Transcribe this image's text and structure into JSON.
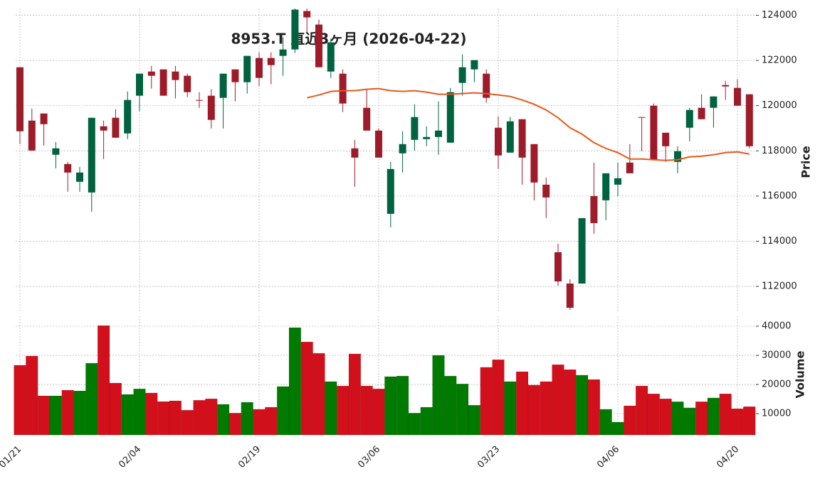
{
  "chart_data": {
    "type": "candlestick",
    "title": "8953.T 直近3ヶ月 (2026-04-22)",
    "categories": [
      "01/21",
      null,
      null,
      null,
      null,
      null,
      null,
      null,
      null,
      null,
      "02/04",
      null,
      null,
      null,
      null,
      null,
      null,
      null,
      null,
      null,
      "02/19",
      null,
      null,
      null,
      null,
      null,
      null,
      null,
      null,
      null,
      "03/06",
      null,
      null,
      null,
      null,
      null,
      null,
      null,
      null,
      null,
      "03/23",
      null,
      null,
      null,
      null,
      null,
      null,
      null,
      null,
      null,
      "04/06",
      null,
      null,
      null,
      null,
      null,
      null,
      null,
      null,
      null,
      "04/20",
      null
    ],
    "open": [
      121700,
      119338,
      119653,
      117826,
      117417,
      116629,
      116157,
      119086,
      119464,
      118771,
      120441,
      121511,
      121606,
      121511,
      121323,
      120252,
      120441,
      120346,
      121606,
      121039,
      122110,
      122110,
      122205,
      122488,
      124189,
      123591,
      121511,
      121417,
      118110,
      119905,
      118897,
      115212,
      117889,
      118487,
      118519,
      118614,
      118362,
      121008,
      121606,
      121417,
      119023,
      117921,
      119401,
      118298,
      116503,
      113512,
      112125,
      112125,
      116000,
      115810,
      116503,
      117480,
      119496,
      120000,
      118802,
      117511,
      119023,
      119905,
      119905,
      120913,
      120787,
      120504
    ],
    "high": [
      121700,
      119873,
      119653,
      118393,
      117511,
      117291,
      119464,
      119338,
      119842,
      120630,
      121417,
      121763,
      121606,
      121763,
      121417,
      120598,
      120724,
      121417,
      121606,
      122205,
      122362,
      122362,
      123024,
      124300,
      124300,
      123811,
      122961,
      121606,
      118487,
      120756,
      118992,
      117511,
      118865,
      120063,
      119086,
      120189,
      120787,
      122268,
      122016,
      121606,
      119527,
      119496,
      119401,
      118298,
      116818,
      113889,
      112314,
      115023,
      117480,
      117007,
      117480,
      118298,
      119496,
      120094,
      118802,
      118204,
      119905,
      120504,
      120409,
      121102,
      121165,
      120504
    ],
    "low": [
      118300,
      118000,
      118236,
      117228,
      116188,
      116188,
      115306,
      117637,
      118582,
      118519,
      119748,
      120756,
      120441,
      120315,
      120378,
      119905,
      118992,
      118992,
      120189,
      120535,
      120850,
      120945,
      121323,
      122331,
      123276,
      121700,
      121228,
      119716,
      116408,
      118897,
      117700,
      114613,
      117039,
      118015,
      118204,
      117826,
      118362,
      120441,
      121039,
      120126,
      117196,
      117921,
      116503,
      115810,
      115023,
      112030,
      110959,
      112125,
      114330,
      114928,
      116000,
      117007,
      117984,
      117606,
      117511,
      117007,
      118424,
      119401,
      119023,
      120252,
      120000,
      118110
    ],
    "close": [
      118866,
      118015,
      119180,
      118110,
      117039,
      117039,
      119464,
      118897,
      118582,
      120252,
      121417,
      121323,
      120441,
      121134,
      120598,
      120220,
      119370,
      121417,
      121039,
      122205,
      121228,
      121795,
      122488,
      124252,
      123906,
      121700,
      122803,
      120094,
      117700,
      118897,
      117700,
      117196,
      118298,
      119496,
      118614,
      118897,
      120598,
      121700,
      122016,
      120346,
      117795,
      119307,
      117700,
      116598,
      115936,
      112219,
      111054,
      115023,
      114802,
      117007,
      116786,
      117007,
      119464,
      117606,
      118204,
      117984,
      119810,
      119401,
      120409,
      120850,
      120000,
      118204
    ],
    "volume": [
      26600,
      29750,
      16100,
      16100,
      18050,
      17800,
      27300,
      40200,
      20500,
      16600,
      18500,
      17100,
      14150,
      14400,
      11200,
      14600,
      15100,
      13200,
      10200,
      13900,
      11500,
      12200,
      19300,
      39500,
      34600,
      30700,
      21000,
      19500,
      30500,
      19500,
      18500,
      22700,
      22900,
      10200,
      12200,
      30000,
      22900,
      20200,
      12900,
      25900,
      28500,
      21000,
      24400,
      19800,
      21000,
      26800,
      25100,
      23200,
      21700,
      11500,
      7100,
      12700,
      19500,
      16800,
      15100,
      14100,
      12000,
      14100,
      15400,
      16800,
      11700,
      12400
    ],
    "ma": {
      "color": "#e8581a",
      "values": [
        null,
        null,
        null,
        null,
        null,
        null,
        null,
        null,
        null,
        null,
        null,
        null,
        null,
        null,
        null,
        null,
        null,
        null,
        null,
        null,
        null,
        null,
        null,
        null,
        120346,
        120472,
        120630,
        120661,
        120661,
        120724,
        120756,
        120661,
        120630,
        120661,
        120598,
        120504,
        120504,
        120535,
        120567,
        120535,
        120472,
        120409,
        120252,
        120063,
        119810,
        119464,
        119023,
        118739,
        118362,
        118110,
        117921,
        117637,
        117637,
        117606,
        117574,
        117606,
        117732,
        117763,
        117826,
        117921,
        117952,
        117858
      ]
    },
    "up_color": "#006340",
    "down_color": "#9e1c2a",
    "volume_up_color": "#007a00",
    "volume_down_color": "#d1101c",
    "ylabel": "Price",
    "y2label": "Volume",
    "ylim": [
      110835,
      124300
    ],
    "yticks": [
      112000,
      114000,
      116000,
      118000,
      120000,
      122000,
      124000
    ],
    "y2lim": [
      2700,
      43400
    ],
    "y2ticks": [
      10000,
      20000,
      30000,
      40000
    ],
    "grid": true
  }
}
